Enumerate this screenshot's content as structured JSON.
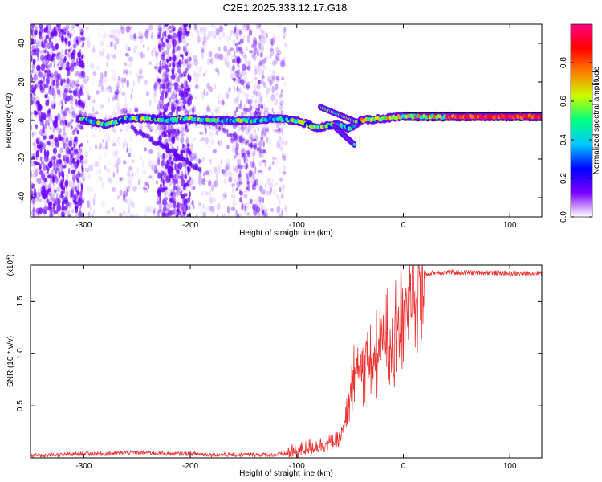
{
  "title": "C2E1.2025.333.12.17.G18",
  "chart_data": [
    {
      "type": "heatmap",
      "xlabel": "Height of straight line (km)",
      "ylabel": "Frequency (Hz)",
      "xlim": [
        -350,
        130
      ],
      "ylim": [
        -50,
        50
      ],
      "x_ticks": [
        -300,
        -200,
        -100,
        0,
        100
      ],
      "x_tick_labels": [
        "-300",
        "-200",
        "-100",
        "0",
        "100"
      ],
      "y_ticks": [
        -40,
        -20,
        0,
        20,
        40
      ],
      "y_tick_labels": [
        "-40",
        "-20",
        "0",
        "20",
        "40"
      ],
      "colorbar": {
        "label": "Normalized spectral amplitude",
        "range": [
          0,
          1
        ],
        "ticks": [
          0.0,
          0.2,
          0.4,
          0.6,
          0.8
        ],
        "tick_labels": [
          "0.0",
          "0.2",
          "0.4",
          "0.6",
          "0.8"
        ],
        "colors": [
          "#ffffff",
          "#7a00ff",
          "#0000ff",
          "#00c8ff",
          "#00ff80",
          "#c8ff00",
          "#ff8000",
          "#ff0000",
          "#ff0080"
        ]
      },
      "main_track": {
        "description_points_x": [
          -305,
          -280,
          -260,
          -240,
          -220,
          -200,
          -180,
          -160,
          -140,
          -120,
          -100,
          -80,
          -65,
          -50,
          -40,
          -20,
          0,
          20,
          40,
          60,
          80,
          100,
          130
        ],
        "description_points_y": [
          1,
          -2,
          1,
          1,
          0,
          1,
          0,
          0,
          0,
          1,
          0,
          -4,
          -2,
          -4,
          0,
          1,
          2,
          2,
          2,
          2,
          2,
          2,
          2
        ]
      },
      "grid": false
    },
    {
      "type": "line",
      "xlabel": "Height of straight line (km)",
      "ylabel": "SNR (10 * v/v)",
      "y_multiplier_label": "(x10",
      "y_multiplier_exp": "4",
      "xlim": [
        -350,
        130
      ],
      "ylim": [
        0,
        1.85
      ],
      "x_ticks": [
        -300,
        -200,
        -100,
        0,
        100
      ],
      "x_tick_labels": [
        "-300",
        "-200",
        "-100",
        "0",
        "100"
      ],
      "y_ticks": [
        0.5,
        1.0,
        1.5
      ],
      "y_tick_labels": [
        "0.5",
        "1.0",
        "1.5"
      ],
      "series": [
        {
          "color": "#ee3333",
          "x": [
            -350,
            -320,
            -300,
            -280,
            -260,
            -240,
            -220,
            -200,
            -180,
            -160,
            -140,
            -120,
            -110,
            -100,
            -90,
            -80,
            -70,
            -60,
            -55,
            -50,
            -45,
            -40,
            -35,
            -30,
            -25,
            -20,
            -15,
            -10,
            -5,
            0,
            5,
            10,
            15,
            20,
            25,
            30,
            40,
            60,
            80,
            100,
            120,
            130
          ],
          "y": [
            0.02,
            0.03,
            0.04,
            0.04,
            0.05,
            0.05,
            0.04,
            0.04,
            0.03,
            0.03,
            0.03,
            0.03,
            0.04,
            0.06,
            0.1,
            0.12,
            0.14,
            0.18,
            0.3,
            0.55,
            0.85,
            0.8,
            0.95,
            0.9,
            1.0,
            1.1,
            1.15,
            1.2,
            1.3,
            1.4,
            1.55,
            1.65,
            1.7,
            1.75,
            1.77,
            1.78,
            1.78,
            1.78,
            1.78,
            1.77,
            1.77,
            1.78
          ]
        }
      ],
      "grid": false
    }
  ]
}
